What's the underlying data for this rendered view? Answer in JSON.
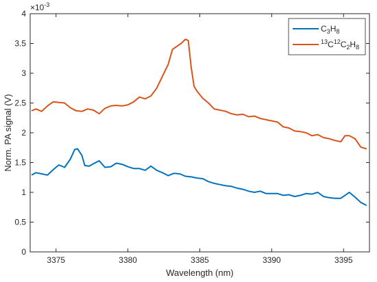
{
  "chart_data": {
    "type": "line",
    "xlabel": "Wavelength (nm)",
    "ylabel": "Norm. PA signal (V)",
    "y_exponent_label": "×10",
    "y_exponent_power": "-3",
    "xlim": [
      3373.2,
      3396.8
    ],
    "ylim": [
      0,
      4
    ],
    "x_ticks": [
      3375,
      3380,
      3385,
      3390,
      3395
    ],
    "y_ticks": [
      0,
      0.5,
      1,
      1.5,
      2,
      2.5,
      3,
      3.5,
      4
    ],
    "grid": false,
    "legend_position": "top-right",
    "colors": {
      "c3h8": "#0072BD",
      "c13": "#D95319"
    },
    "series": [
      {
        "name": "C3H8",
        "legend": {
          "parts": [
            {
              "t": "C"
            },
            {
              "t": "3",
              "sub": true
            },
            {
              "t": "H"
            },
            {
              "t": "8",
              "sub": true
            }
          ]
        },
        "color": "#0072BD",
        "x": [
          3373.3,
          3373.6,
          3374.0,
          3374.4,
          3374.8,
          3375.2,
          3375.6,
          3376.0,
          3376.3,
          3376.5,
          3376.8,
          3377.0,
          3377.3,
          3377.6,
          3378.0,
          3378.4,
          3378.8,
          3379.2,
          3379.6,
          3380.0,
          3380.4,
          3380.8,
          3381.2,
          3381.6,
          3382.0,
          3382.4,
          3382.8,
          3383.2,
          3383.6,
          3384.0,
          3384.4,
          3384.8,
          3385.2,
          3385.6,
          3386.0,
          3386.4,
          3386.8,
          3387.2,
          3387.6,
          3388.0,
          3388.4,
          3388.8,
          3389.2,
          3389.6,
          3390.0,
          3390.4,
          3390.8,
          3391.2,
          3391.6,
          3392.0,
          3392.4,
          3392.8,
          3393.2,
          3393.6,
          3394.0,
          3394.4,
          3394.8,
          3395.1,
          3395.4,
          3395.8,
          3396.2,
          3396.6
        ],
        "values": [
          1.29,
          1.33,
          1.31,
          1.29,
          1.38,
          1.46,
          1.42,
          1.56,
          1.72,
          1.73,
          1.62,
          1.45,
          1.44,
          1.48,
          1.53,
          1.42,
          1.43,
          1.49,
          1.47,
          1.43,
          1.4,
          1.4,
          1.37,
          1.44,
          1.37,
          1.33,
          1.28,
          1.32,
          1.31,
          1.27,
          1.26,
          1.24,
          1.23,
          1.18,
          1.15,
          1.13,
          1.11,
          1.1,
          1.07,
          1.05,
          1.02,
          1.0,
          1.02,
          0.98,
          0.98,
          0.98,
          0.95,
          0.96,
          0.93,
          0.95,
          0.98,
          0.97,
          1.0,
          0.93,
          0.91,
          0.9,
          0.9,
          0.95,
          1.0,
          0.92,
          0.83,
          0.78
        ]
      },
      {
        "name": "13C12C2H8",
        "legend": {
          "parts": [
            {
              "t": "13",
              "sup": true
            },
            {
              "t": "C"
            },
            {
              "t": "12",
              "sup": true
            },
            {
              "t": "C"
            },
            {
              "t": "2",
              "sub": true
            },
            {
              "t": "H"
            },
            {
              "t": "8",
              "sub": true
            }
          ]
        },
        "color": "#D95319",
        "x": [
          3373.3,
          3373.6,
          3374.0,
          3374.4,
          3374.8,
          3375.2,
          3375.6,
          3376.0,
          3376.4,
          3376.8,
          3377.2,
          3377.6,
          3378.0,
          3378.4,
          3378.8,
          3379.2,
          3379.6,
          3380.0,
          3380.4,
          3380.8,
          3381.2,
          3381.6,
          3382.0,
          3382.4,
          3382.8,
          3383.1,
          3383.4,
          3383.7,
          3384.0,
          3384.2,
          3384.4,
          3384.6,
          3384.8,
          3385.2,
          3385.6,
          3386.0,
          3386.4,
          3386.8,
          3387.2,
          3387.6,
          3388.0,
          3388.4,
          3388.8,
          3389.2,
          3389.6,
          3390.0,
          3390.4,
          3390.8,
          3391.2,
          3391.6,
          3392.0,
          3392.4,
          3392.8,
          3393.2,
          3393.6,
          3394.0,
          3394.4,
          3394.8,
          3395.1,
          3395.4,
          3395.8,
          3396.2,
          3396.6
        ],
        "values": [
          2.37,
          2.4,
          2.36,
          2.45,
          2.52,
          2.51,
          2.5,
          2.42,
          2.37,
          2.36,
          2.4,
          2.38,
          2.32,
          2.41,
          2.45,
          2.46,
          2.45,
          2.47,
          2.52,
          2.6,
          2.57,
          2.62,
          2.75,
          2.95,
          3.15,
          3.4,
          3.45,
          3.5,
          3.57,
          3.55,
          3.1,
          2.78,
          2.7,
          2.58,
          2.5,
          2.4,
          2.38,
          2.36,
          2.32,
          2.3,
          2.31,
          2.27,
          2.28,
          2.24,
          2.22,
          2.2,
          2.18,
          2.1,
          2.08,
          2.03,
          2.02,
          2.0,
          1.95,
          1.97,
          1.92,
          1.9,
          1.87,
          1.85,
          1.95,
          1.95,
          1.9,
          1.76,
          1.73
        ]
      }
    ]
  }
}
